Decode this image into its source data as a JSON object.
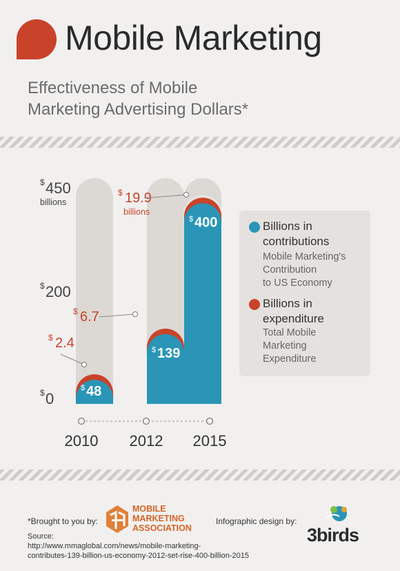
{
  "header": {
    "title": "Mobile Marketing",
    "subtitle_line1": "Effectiveness of Mobile",
    "subtitle_line2": "Marketing Advertising Dollars*"
  },
  "colors": {
    "contribution": "#2a95b6",
    "expenditure": "#c9432a",
    "track": "#dcd8d4",
    "background": "#f1f0ef"
  },
  "chart_data": {
    "type": "bar",
    "categories": [
      "2010",
      "2012",
      "2015"
    ],
    "series": [
      {
        "name": "Billions in contributions",
        "values": [
          48,
          139,
          400
        ],
        "labels": [
          "48",
          "139",
          "400"
        ]
      },
      {
        "name": "Billions in expenditure",
        "values": [
          2.4,
          6.7,
          19.9
        ],
        "labels": [
          "2.4",
          "6.7",
          "19.9"
        ]
      }
    ],
    "currency_symbol": "$",
    "yticks": [
      {
        "value": 0,
        "label": "0"
      },
      {
        "value": 200,
        "label": "200"
      },
      {
        "value": 450,
        "label": "450"
      }
    ],
    "ytick_unit": "billions",
    "expenditure_unit": "billions",
    "ylim": [
      0,
      450
    ],
    "legend_placement": "right",
    "grid": false
  },
  "legend": {
    "items": [
      {
        "title_line1": "Billions in",
        "title_line2": "contributions",
        "desc": [
          "Mobile Marketing's",
          "Contribution",
          "to US Economy"
        ],
        "icon": "blue-dot-icon"
      },
      {
        "title_line1": "Billions in",
        "title_line2": "expenditure",
        "desc": [
          "Total Mobile",
          "Marketing",
          "Expenditure"
        ],
        "icon": "red-dot-icon"
      }
    ]
  },
  "footer": {
    "brought_by": "*Brought to you by:",
    "mma": [
      "MOBILE",
      "MARKETING",
      "ASSOCIATION"
    ],
    "design_by": "Infographic design by:",
    "designer": "3birds",
    "source_label": "Source:",
    "source_url_line1": "http://www.mmaglobal.com/news/mobile-marketing-",
    "source_url_line2": "contributes-139-billion-us-economy-2012-set-rise-400-billion-2015"
  }
}
